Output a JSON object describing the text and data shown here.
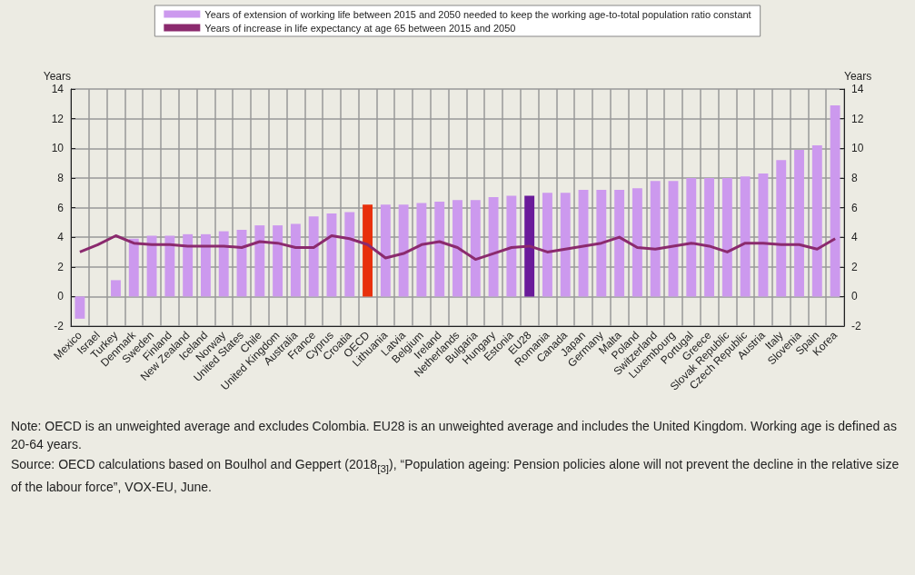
{
  "chart_data": {
    "type": "bar",
    "categories": [
      "Mexico",
      "Israel",
      "Turkey",
      "Denmark",
      "Sweden",
      "Finland",
      "New Zealand",
      "Iceland",
      "Norway",
      "United States",
      "Chile",
      "United Kingdom",
      "Australia",
      "France",
      "Cyprus",
      "Croatia",
      "OECD",
      "Lithuania",
      "Latvia",
      "Belgium",
      "Ireland",
      "Netherlands",
      "Bulgaria",
      "Hungary",
      "Estonia",
      "EU28",
      "Romania",
      "Canada",
      "Japan",
      "Germany",
      "Malta",
      "Poland",
      "Switzerland",
      "Luxembourg",
      "Portugal",
      "Greece",
      "Slovak Republic",
      "Czech Republic",
      "Austria",
      "Italy",
      "Slovenia",
      "Spain",
      "Korea"
    ],
    "series": [
      {
        "name": "Years of extension of working life between 2015 and 2050 needed to keep the working age-to-total population ratio constant",
        "color": "#cc99ee",
        "colors": [
          "#cc99ee",
          "#cc99ee",
          "#cc99ee",
          "#cc99ee",
          "#cc99ee",
          "#cc99ee",
          "#cc99ee",
          "#cc99ee",
          "#cc99ee",
          "#cc99ee",
          "#cc99ee",
          "#cc99ee",
          "#cc99ee",
          "#cc99ee",
          "#cc99ee",
          "#cc99ee",
          "#e8300c",
          "#cc99ee",
          "#cc99ee",
          "#cc99ee",
          "#cc99ee",
          "#cc99ee",
          "#cc99ee",
          "#cc99ee",
          "#cc99ee",
          "#6a1b9a",
          "#cc99ee",
          "#cc99ee",
          "#cc99ee",
          "#cc99ee",
          "#cc99ee",
          "#cc99ee",
          "#cc99ee",
          "#cc99ee",
          "#cc99ee",
          "#cc99ee",
          "#cc99ee",
          "#cc99ee",
          "#cc99ee",
          "#cc99ee",
          "#cc99ee",
          "#cc99ee",
          "#cc99ee"
        ],
        "values": [
          -1.5,
          null,
          1.1,
          3.9,
          4.1,
          4.1,
          4.2,
          4.2,
          4.4,
          4.5,
          4.8,
          4.8,
          4.9,
          5.4,
          5.6,
          5.7,
          6.2,
          6.2,
          6.2,
          6.3,
          6.4,
          6.5,
          6.5,
          6.7,
          6.8,
          6.8,
          7.0,
          7.0,
          7.2,
          7.2,
          7.2,
          7.3,
          7.8,
          7.8,
          8.0,
          8.0,
          8.0,
          8.1,
          8.3,
          9.2,
          9.9,
          10.2,
          12.9
        ]
      },
      {
        "type": "line",
        "name": "Years of increase in life expectancy at age 65 between 2015 and 2050",
        "color": "#8b2a6e",
        "values": [
          3.0,
          3.5,
          4.1,
          3.6,
          3.5,
          3.5,
          3.4,
          3.4,
          3.4,
          3.3,
          3.7,
          3.6,
          3.3,
          3.3,
          4.1,
          3.9,
          3.5,
          2.6,
          2.9,
          3.5,
          3.7,
          3.3,
          2.5,
          2.9,
          3.3,
          3.4,
          3.0,
          3.2,
          3.4,
          3.6,
          4.0,
          3.3,
          3.2,
          3.4,
          3.6,
          3.4,
          3.0,
          3.6,
          3.6,
          3.5,
          3.5,
          3.2,
          3.9
        ]
      }
    ],
    "ylabel": "Years",
    "y2label": "Years",
    "ylim": [
      -2,
      14
    ],
    "yticks": [
      -2,
      0,
      2,
      4,
      6,
      8,
      10,
      12,
      14
    ],
    "y2lim": [
      -2,
      14
    ],
    "y2ticks": [
      -2,
      0,
      2,
      4,
      6,
      8,
      10,
      12,
      14
    ],
    "grid": true,
    "legend": "top",
    "marker": "none",
    "line_style": "solid",
    "annotations": [
      "Note: OECD is an unweighted average and excludes Colombia. EU28 is an unweighted average and includes the United Kingdom. Working age is defined as 20-64 years.",
      "Source: OECD calculations based on Boulhol and Geppert (2018$_{[3]}$), “Population ageing: Pension policies alone will not prevent the decline in the relative size of the labour force”, VOX-EU, June."
    ]
  }
}
